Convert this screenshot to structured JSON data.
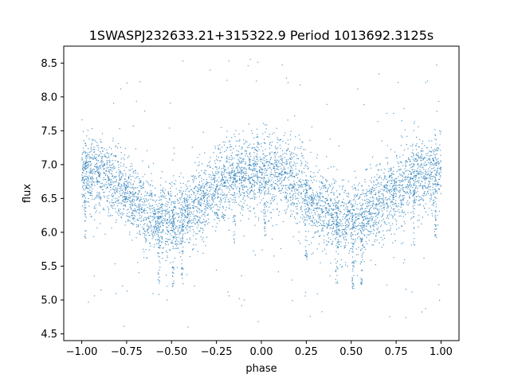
{
  "chart_data": {
    "type": "scatter",
    "title": "1SWASPJ232633.21+315322.9 Period 1013692.3125s",
    "xlabel": "phase",
    "ylabel": "flux",
    "xlim": [
      -1.1,
      1.1
    ],
    "ylim": [
      4.4,
      8.75
    ],
    "xticks": [
      -1.0,
      -0.75,
      -0.5,
      -0.25,
      0.0,
      0.25,
      0.5,
      0.75,
      1.0
    ],
    "xtick_labels": [
      "−1.00",
      "−0.75",
      "−0.50",
      "−0.25",
      "0.00",
      "0.25",
      "0.50",
      "0.75",
      "1.00"
    ],
    "yticks": [
      4.5,
      5.0,
      5.5,
      6.0,
      6.5,
      7.0,
      7.5,
      8.0,
      8.5
    ],
    "ytick_labels": [
      "4.5",
      "5.0",
      "5.5",
      "6.0",
      "6.5",
      "7.0",
      "7.5",
      "8.0",
      "8.5"
    ],
    "grid": false,
    "legend": "none",
    "series_color": "#1f77b4",
    "trend": {
      "phase": [
        -1.0,
        -0.9,
        -0.8,
        -0.7,
        -0.6,
        -0.55,
        -0.5,
        -0.45,
        -0.4,
        -0.3,
        -0.2,
        -0.1,
        0.0,
        0.1,
        0.2,
        0.3,
        0.4,
        0.45,
        0.5,
        0.55,
        0.6,
        0.7,
        0.8,
        0.9,
        1.0
      ],
      "flux": [
        6.9,
        6.85,
        6.7,
        6.45,
        6.25,
        6.15,
        6.15,
        6.2,
        6.3,
        6.5,
        6.75,
        6.85,
        6.9,
        6.85,
        6.7,
        6.45,
        6.25,
        6.15,
        6.15,
        6.2,
        6.3,
        6.5,
        6.75,
        6.85,
        6.9
      ],
      "scatter_sd": 0.28
    },
    "outlier_flux_range": [
      4.6,
      8.6
    ]
  }
}
